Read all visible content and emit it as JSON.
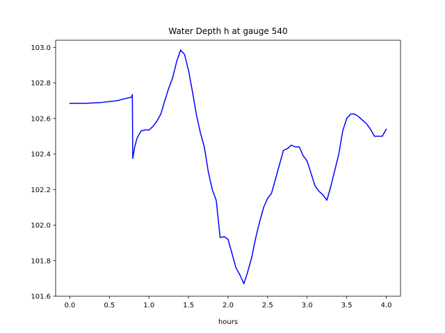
{
  "chart_data": {
    "type": "line",
    "title": "Water Depth h at gauge 540",
    "xlabel": "hours",
    "ylabel": "",
    "xlim": [
      -0.18,
      4.18
    ],
    "ylim": [
      101.6,
      103.04
    ],
    "xticks": [
      0.0,
      0.5,
      1.0,
      1.5,
      2.0,
      2.5,
      3.0,
      3.5,
      4.0
    ],
    "xtick_labels": [
      "0.0",
      "0.5",
      "1.0",
      "1.5",
      "2.0",
      "2.5",
      "3.0",
      "3.5",
      "4.0"
    ],
    "yticks": [
      101.6,
      101.8,
      102.0,
      102.2,
      102.4,
      102.6,
      102.8,
      103.0
    ],
    "ytick_labels": [
      "101.6",
      "101.8",
      "102.0",
      "102.2",
      "102.4",
      "102.6",
      "102.8",
      "103.0"
    ],
    "grid": false,
    "series": [
      {
        "color": "#0000ff",
        "x": [
          0.0,
          0.2,
          0.4,
          0.6,
          0.7,
          0.78,
          0.79,
          0.795,
          0.82,
          0.85,
          0.9,
          0.95,
          1.0,
          1.05,
          1.1,
          1.15,
          1.2,
          1.25,
          1.3,
          1.35,
          1.4,
          1.45,
          1.5,
          1.55,
          1.6,
          1.65,
          1.7,
          1.75,
          1.8,
          1.85,
          1.9,
          1.95,
          2.0,
          2.05,
          2.1,
          2.15,
          2.2,
          2.25,
          2.3,
          2.35,
          2.4,
          2.45,
          2.5,
          2.55,
          2.6,
          2.65,
          2.7,
          2.75,
          2.8,
          2.85,
          2.9,
          2.95,
          3.0,
          3.05,
          3.1,
          3.15,
          3.2,
          3.25,
          3.3,
          3.35,
          3.4,
          3.45,
          3.5,
          3.55,
          3.6,
          3.65,
          3.7,
          3.75,
          3.8,
          3.85,
          3.9,
          3.95,
          4.0
        ],
        "y": [
          102.685,
          102.685,
          102.69,
          102.7,
          102.712,
          102.72,
          102.735,
          102.375,
          102.44,
          102.49,
          102.53,
          102.535,
          102.535,
          102.555,
          102.585,
          102.625,
          102.7,
          102.77,
          102.83,
          102.92,
          102.985,
          102.96,
          102.87,
          102.75,
          102.62,
          102.52,
          102.44,
          102.3,
          102.2,
          102.14,
          101.93,
          101.935,
          101.92,
          101.84,
          101.76,
          101.72,
          101.67,
          101.74,
          101.82,
          101.93,
          102.02,
          102.1,
          102.15,
          102.18,
          102.26,
          102.34,
          102.42,
          102.43,
          102.45,
          102.44,
          102.44,
          102.39,
          102.36,
          102.29,
          102.22,
          102.19,
          102.17,
          102.14,
          102.22,
          102.31,
          102.4,
          102.53,
          102.6,
          102.625,
          102.625,
          102.61,
          102.59,
          102.57,
          102.54,
          102.5,
          102.5,
          102.5,
          102.54
        ]
      }
    ]
  }
}
